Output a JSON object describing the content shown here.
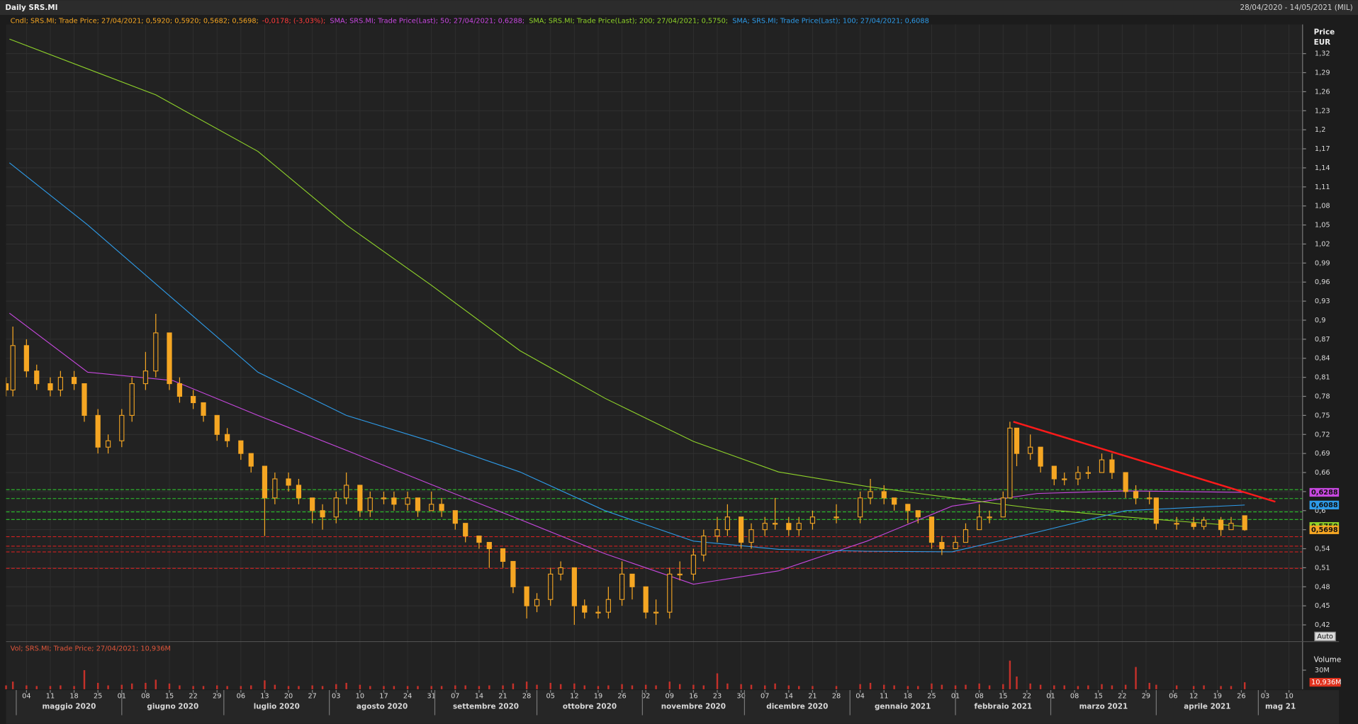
{
  "header": {
    "title": "Daily SRS.MI",
    "range": "28/04/2020 - 14/05/2021 (MIL)"
  },
  "chart_data": {
    "type": "candlestick",
    "candle_legend": [
      {
        "text": "Cndl; SRS.MI; Trade Price; 27/04/2021; 0,5920; 0,5920; 0,5682; 0,5698;",
        "color": "#f5a623"
      },
      {
        "text": "-0,0178; (-3,03%);",
        "color": "#ff3b3b"
      }
    ],
    "color": "#f5a623",
    "x": [
      "2020-04-28",
      "2020-04-30",
      "2020-05-04",
      "2020-05-07",
      "2020-05-11",
      "2020-05-14",
      "2020-05-18",
      "2020-05-21",
      "2020-05-25",
      "2020-05-28",
      "2020-06-01",
      "2020-06-04",
      "2020-06-08",
      "2020-06-11",
      "2020-06-15",
      "2020-06-18",
      "2020-06-22",
      "2020-06-25",
      "2020-06-29",
      "2020-07-02",
      "2020-07-06",
      "2020-07-09",
      "2020-07-13",
      "2020-07-16",
      "2020-07-20",
      "2020-07-23",
      "2020-07-27",
      "2020-07-30",
      "2020-08-03",
      "2020-08-06",
      "2020-08-10",
      "2020-08-13",
      "2020-08-17",
      "2020-08-20",
      "2020-08-24",
      "2020-08-27",
      "2020-08-31",
      "2020-09-03",
      "2020-09-07",
      "2020-09-10",
      "2020-09-14",
      "2020-09-17",
      "2020-09-21",
      "2020-09-24",
      "2020-09-28",
      "2020-10-01",
      "2020-10-05",
      "2020-10-08",
      "2020-10-12",
      "2020-10-15",
      "2020-10-19",
      "2020-10-22",
      "2020-10-26",
      "2020-10-29",
      "2020-11-02",
      "2020-11-05",
      "2020-11-09",
      "2020-11-12",
      "2020-11-16",
      "2020-11-19",
      "2020-11-23",
      "2020-11-26",
      "2020-11-30",
      "2020-12-03",
      "2020-12-07",
      "2020-12-10",
      "2020-12-14",
      "2020-12-17",
      "2020-12-21",
      "2020-12-28",
      "2021-01-04",
      "2021-01-07",
      "2021-01-11",
      "2021-01-14",
      "2021-01-18",
      "2021-01-21",
      "2021-01-25",
      "2021-01-28",
      "2021-02-01",
      "2021-02-04",
      "2021-02-08",
      "2021-02-11",
      "2021-02-15",
      "2021-02-17",
      "2021-02-19",
      "2021-02-23",
      "2021-02-26",
      "2021-03-02",
      "2021-03-05",
      "2021-03-09",
      "2021-03-12",
      "2021-03-16",
      "2021-03-19",
      "2021-03-23",
      "2021-03-26",
      "2021-03-30",
      "2021-04-01",
      "2021-04-07",
      "2021-04-12",
      "2021-04-15",
      "2021-04-20",
      "2021-04-23",
      "2021-04-27"
    ],
    "open": [
      0.8,
      0.79,
      0.86,
      0.82,
      0.8,
      0.79,
      0.81,
      0.8,
      0.75,
      0.7,
      0.71,
      0.75,
      0.8,
      0.82,
      0.88,
      0.8,
      0.78,
      0.77,
      0.75,
      0.72,
      0.71,
      0.69,
      0.67,
      0.62,
      0.65,
      0.64,
      0.62,
      0.6,
      0.59,
      0.62,
      0.64,
      0.6,
      0.62,
      0.62,
      0.61,
      0.62,
      0.6,
      0.61,
      0.6,
      0.58,
      0.56,
      0.55,
      0.54,
      0.52,
      0.48,
      0.45,
      0.46,
      0.5,
      0.51,
      0.45,
      0.44,
      0.44,
      0.46,
      0.5,
      0.48,
      0.44,
      0.44,
      0.5,
      0.5,
      0.53,
      0.56,
      0.57,
      0.59,
      0.55,
      0.57,
      0.58,
      0.58,
      0.57,
      0.58,
      0.59,
      0.59,
      0.62,
      0.63,
      0.62,
      0.61,
      0.6,
      0.59,
      0.55,
      0.54,
      0.55,
      0.57,
      0.59,
      0.59,
      0.62,
      0.73,
      0.69,
      0.7,
      0.67,
      0.65,
      0.65,
      0.66,
      0.66,
      0.68,
      0.66,
      0.63,
      0.62,
      0.62,
      0.58,
      0.58,
      0.575,
      0.585,
      0.57,
      0.592
    ],
    "high": [
      0.81,
      0.89,
      0.87,
      0.83,
      0.81,
      0.82,
      0.82,
      0.8,
      0.76,
      0.72,
      0.76,
      0.81,
      0.85,
      0.91,
      0.88,
      0.81,
      0.79,
      0.77,
      0.75,
      0.73,
      0.71,
      0.69,
      0.67,
      0.66,
      0.66,
      0.65,
      0.62,
      0.61,
      0.63,
      0.66,
      0.64,
      0.63,
      0.63,
      0.63,
      0.63,
      0.62,
      0.63,
      0.62,
      0.6,
      0.58,
      0.56,
      0.55,
      0.54,
      0.52,
      0.48,
      0.47,
      0.51,
      0.52,
      0.51,
      0.46,
      0.45,
      0.48,
      0.52,
      0.5,
      0.48,
      0.46,
      0.51,
      0.52,
      0.54,
      0.57,
      0.59,
      0.61,
      0.59,
      0.58,
      0.59,
      0.62,
      0.59,
      0.59,
      0.6,
      0.61,
      0.63,
      0.65,
      0.64,
      0.62,
      0.61,
      0.6,
      0.59,
      0.56,
      0.56,
      0.58,
      0.61,
      0.6,
      0.63,
      0.74,
      0.73,
      0.72,
      0.7,
      0.67,
      0.66,
      0.67,
      0.67,
      0.69,
      0.69,
      0.66,
      0.64,
      0.63,
      0.62,
      0.59,
      0.59,
      0.59,
      0.59,
      0.59,
      0.592
    ],
    "low": [
      0.78,
      0.78,
      0.81,
      0.79,
      0.78,
      0.78,
      0.79,
      0.74,
      0.69,
      0.69,
      0.7,
      0.74,
      0.79,
      0.81,
      0.79,
      0.77,
      0.76,
      0.74,
      0.71,
      0.7,
      0.68,
      0.66,
      0.56,
      0.61,
      0.63,
      0.61,
      0.58,
      0.57,
      0.58,
      0.61,
      0.59,
      0.59,
      0.61,
      0.6,
      0.6,
      0.59,
      0.6,
      0.59,
      0.57,
      0.55,
      0.54,
      0.51,
      0.51,
      0.47,
      0.43,
      0.44,
      0.45,
      0.49,
      0.42,
      0.43,
      0.43,
      0.43,
      0.45,
      0.46,
      0.43,
      0.42,
      0.43,
      0.49,
      0.49,
      0.52,
      0.55,
      0.56,
      0.54,
      0.54,
      0.56,
      0.57,
      0.56,
      0.56,
      0.57,
      0.58,
      0.58,
      0.61,
      0.61,
      0.6,
      0.58,
      0.58,
      0.54,
      0.53,
      0.54,
      0.55,
      0.57,
      0.58,
      0.59,
      0.62,
      0.67,
      0.68,
      0.66,
      0.64,
      0.64,
      0.64,
      0.65,
      0.66,
      0.65,
      0.62,
      0.61,
      0.61,
      0.57,
      0.57,
      0.57,
      0.57,
      0.56,
      0.57,
      0.5682
    ],
    "close": [
      0.79,
      0.86,
      0.82,
      0.8,
      0.79,
      0.81,
      0.8,
      0.75,
      0.7,
      0.71,
      0.75,
      0.8,
      0.82,
      0.88,
      0.8,
      0.78,
      0.77,
      0.75,
      0.72,
      0.71,
      0.69,
      0.67,
      0.62,
      0.65,
      0.64,
      0.62,
      0.6,
      0.59,
      0.62,
      0.64,
      0.6,
      0.62,
      0.62,
      0.61,
      0.62,
      0.6,
      0.61,
      0.6,
      0.58,
      0.56,
      0.55,
      0.54,
      0.52,
      0.48,
      0.45,
      0.46,
      0.5,
      0.51,
      0.45,
      0.44,
      0.44,
      0.46,
      0.5,
      0.48,
      0.44,
      0.44,
      0.5,
      0.5,
      0.53,
      0.56,
      0.57,
      0.59,
      0.55,
      0.57,
      0.58,
      0.58,
      0.57,
      0.58,
      0.59,
      0.59,
      0.62,
      0.63,
      0.62,
      0.61,
      0.6,
      0.59,
      0.55,
      0.54,
      0.55,
      0.57,
      0.59,
      0.59,
      0.62,
      0.73,
      0.69,
      0.7,
      0.67,
      0.65,
      0.65,
      0.66,
      0.66,
      0.68,
      0.66,
      0.63,
      0.62,
      0.62,
      0.58,
      0.58,
      0.575,
      0.585,
      0.57,
      0.58,
      0.5698
    ],
    "series": [
      {
        "name": "SMA; SRS.MI; Trade Price(Last); 50; 27/04/2021; 0,6288;",
        "color": "#c848e0",
        "x": [
          "2020-04-29",
          "2020-05-22",
          "2020-06-16",
          "2020-07-11",
          "2020-08-06",
          "2020-08-31",
          "2020-09-26",
          "2020-10-21",
          "2020-11-16",
          "2020-12-11",
          "2021-01-06",
          "2021-01-31",
          "2021-02-25",
          "2021-03-23",
          "2021-04-27"
        ],
        "values": [
          0.911,
          0.818,
          0.805,
          0.75,
          0.695,
          0.641,
          0.586,
          0.532,
          0.484,
          0.505,
          0.552,
          0.607,
          0.627,
          0.631,
          0.6288
        ]
      },
      {
        "name": "SMA; SRS.MI; Trade Price(Last); 200; 27/04/2021; 0,5750;",
        "color": "#8fd32a",
        "x": [
          "2020-04-29",
          "2020-06-11",
          "2020-07-11",
          "2020-08-06",
          "2020-08-31",
          "2020-09-26",
          "2020-10-21",
          "2020-11-16",
          "2020-12-11",
          "2021-01-06",
          "2021-01-31",
          "2021-02-25",
          "2021-03-23",
          "2021-04-27"
        ],
        "values": [
          1.343,
          1.255,
          1.166,
          1.05,
          0.955,
          0.852,
          0.777,
          0.709,
          0.661,
          0.638,
          0.62,
          0.603,
          0.59,
          0.575
        ]
      },
      {
        "name": "SMA; SRS.MI; Trade Price(Last); 100; 27/04/2021; 0,6088",
        "color": "#2e9be8",
        "x": [
          "2020-04-29",
          "2020-05-22",
          "2020-06-16",
          "2020-07-11",
          "2020-08-06",
          "2020-08-31",
          "2020-09-26",
          "2020-10-21",
          "2020-11-16",
          "2020-12-11",
          "2021-01-06",
          "2021-01-31",
          "2021-02-25",
          "2021-03-23",
          "2021-04-27"
        ],
        "values": [
          1.148,
          1.05,
          0.934,
          0.818,
          0.75,
          0.709,
          0.661,
          0.6,
          0.552,
          0.539,
          0.536,
          0.535,
          0.566,
          0.6,
          0.6088
        ]
      }
    ],
    "xlim": [
      "2020-04-28",
      "2021-05-14"
    ],
    "xticks": [
      {
        "value": "2020-05-04",
        "label": "04"
      },
      {
        "value": "2020-05-11",
        "label": "11"
      },
      {
        "value": "2020-05-18",
        "label": "18"
      },
      {
        "value": "2020-05-25",
        "label": "25"
      },
      {
        "value": "2020-06-01",
        "label": "01"
      },
      {
        "value": "2020-06-08",
        "label": "08"
      },
      {
        "value": "2020-06-15",
        "label": "15"
      },
      {
        "value": "2020-06-22",
        "label": "22"
      },
      {
        "value": "2020-06-29",
        "label": "29"
      },
      {
        "value": "2020-07-06",
        "label": "06"
      },
      {
        "value": "2020-07-13",
        "label": "13"
      },
      {
        "value": "2020-07-20",
        "label": "20"
      },
      {
        "value": "2020-07-27",
        "label": "27"
      },
      {
        "value": "2020-08-03",
        "label": "03"
      },
      {
        "value": "2020-08-10",
        "label": "10"
      },
      {
        "value": "2020-08-17",
        "label": "17"
      },
      {
        "value": "2020-08-24",
        "label": "24"
      },
      {
        "value": "2020-08-31",
        "label": "31"
      },
      {
        "value": "2020-09-07",
        "label": "07"
      },
      {
        "value": "2020-09-14",
        "label": "14"
      },
      {
        "value": "2020-09-21",
        "label": "21"
      },
      {
        "value": "2020-09-28",
        "label": "28"
      },
      {
        "value": "2020-10-05",
        "label": "05"
      },
      {
        "value": "2020-10-12",
        "label": "12"
      },
      {
        "value": "2020-10-19",
        "label": "19"
      },
      {
        "value": "2020-10-26",
        "label": "26"
      },
      {
        "value": "2020-11-02",
        "label": "02"
      },
      {
        "value": "2020-11-09",
        "label": "09"
      },
      {
        "value": "2020-11-16",
        "label": "16"
      },
      {
        "value": "2020-11-23",
        "label": "23"
      },
      {
        "value": "2020-11-30",
        "label": "30"
      },
      {
        "value": "2020-12-07",
        "label": "07"
      },
      {
        "value": "2020-12-14",
        "label": "14"
      },
      {
        "value": "2020-12-21",
        "label": "21"
      },
      {
        "value": "2020-12-28",
        "label": "28"
      },
      {
        "value": "2021-01-04",
        "label": "04"
      },
      {
        "value": "2021-01-11",
        "label": "11"
      },
      {
        "value": "2021-01-18",
        "label": "18"
      },
      {
        "value": "2021-01-25",
        "label": "25"
      },
      {
        "value": "2021-02-01",
        "label": "01"
      },
      {
        "value": "2021-02-08",
        "label": "08"
      },
      {
        "value": "2021-02-15",
        "label": "15"
      },
      {
        "value": "2021-02-22",
        "label": "22"
      },
      {
        "value": "2021-03-01",
        "label": "01"
      },
      {
        "value": "2021-03-08",
        "label": "08"
      },
      {
        "value": "2021-03-15",
        "label": "15"
      },
      {
        "value": "2021-03-22",
        "label": "22"
      },
      {
        "value": "2021-03-29",
        "label": "29"
      },
      {
        "value": "2021-04-06",
        "label": "06"
      },
      {
        "value": "2021-04-12",
        "label": "12"
      },
      {
        "value": "2021-04-19",
        "label": "19"
      },
      {
        "value": "2021-04-26",
        "label": "26"
      },
      {
        "value": "2021-05-03",
        "label": "03"
      },
      {
        "value": "2021-05-10",
        "label": "10"
      }
    ],
    "months": [
      {
        "value": "2020-05",
        "label": "maggio 2020"
      },
      {
        "value": "2020-06",
        "label": "giugno 2020"
      },
      {
        "value": "2020-07",
        "label": "luglio 2020"
      },
      {
        "value": "2020-08",
        "label": "agosto 2020"
      },
      {
        "value": "2020-09",
        "label": "settembre 2020"
      },
      {
        "value": "2020-10",
        "label": "ottobre 2020"
      },
      {
        "value": "2020-11",
        "label": "novembre 2020"
      },
      {
        "value": "2020-12",
        "label": "dicembre 2020"
      },
      {
        "value": "2021-01",
        "label": "gennaio 2021"
      },
      {
        "value": "2021-02",
        "label": "febbraio 2021"
      },
      {
        "value": "2021-03",
        "label": "marzo 2021"
      },
      {
        "value": "2021-04",
        "label": "aprile 2021"
      },
      {
        "value": "2021-05",
        "label": "mag 21"
      }
    ],
    "ylim": [
      0.395,
      1.366
    ],
    "yticks": [
      {
        "value": 0.42,
        "label": "0,42"
      },
      {
        "value": 0.45,
        "label": "0,45"
      },
      {
        "value": 0.48,
        "label": "0,48"
      },
      {
        "value": 0.51,
        "label": "0,51"
      },
      {
        "value": 0.54,
        "label": "0,54"
      },
      {
        "value": 0.57,
        "label": "0,57"
      },
      {
        "value": 0.6,
        "label": "0,6"
      },
      {
        "value": 0.63,
        "label": "0,63"
      },
      {
        "value": 0.66,
        "label": "0,66"
      },
      {
        "value": 0.69,
        "label": "0,69"
      },
      {
        "value": 0.72,
        "label": "0,72"
      },
      {
        "value": 0.75,
        "label": "0,75"
      },
      {
        "value": 0.78,
        "label": "0,78"
      },
      {
        "value": 0.81,
        "label": "0,81"
      },
      {
        "value": 0.84,
        "label": "0,84"
      },
      {
        "value": 0.87,
        "label": "0,87"
      },
      {
        "value": 0.9,
        "label": "0,9"
      },
      {
        "value": 0.93,
        "label": "0,93"
      },
      {
        "value": 0.96,
        "label": "0,96"
      },
      {
        "value": 0.99,
        "label": "0,99"
      },
      {
        "value": 1.02,
        "label": "1,02"
      },
      {
        "value": 1.05,
        "label": "1,05"
      },
      {
        "value": 1.08,
        "label": "1,08"
      },
      {
        "value": 1.11,
        "label": "1,11"
      },
      {
        "value": 1.14,
        "label": "1,14"
      },
      {
        "value": 1.17,
        "label": "1,17"
      },
      {
        "value": 1.2,
        "label": "1,2"
      },
      {
        "value": 1.23,
        "label": "1,23"
      },
      {
        "value": 1.26,
        "label": "1,26"
      },
      {
        "value": 1.29,
        "label": "1,29"
      },
      {
        "value": 1.32,
        "label": "1,32"
      }
    ],
    "y_axis_title": "Price",
    "y_axis_unit": "EUR",
    "grid": true,
    "support_lines": [
      {
        "value": 0.633,
        "color": "#2ec42e"
      },
      {
        "value": 0.619,
        "color": "#2ec42e"
      },
      {
        "value": 0.598,
        "color": "#2ec42e"
      },
      {
        "value": 0.586,
        "color": "#2ec42e"
      },
      {
        "value": 0.559,
        "color": "#d02020"
      },
      {
        "value": 0.544,
        "color": "#d02020"
      },
      {
        "value": 0.535,
        "color": "#d02020"
      },
      {
        "value": 0.509,
        "color": "#d02020"
      }
    ],
    "trendline": {
      "x": [
        "2021-02-18",
        "2021-05-06"
      ],
      "y": [
        0.74,
        0.614
      ],
      "color": "#ff1a1a"
    },
    "price_labels": [
      {
        "value": 0.6288,
        "label": "0,6288",
        "color": "#c848e0"
      },
      {
        "value": 0.6088,
        "label": "0,6088",
        "color": "#2e9be8"
      },
      {
        "value": 0.575,
        "label": "0,5750",
        "color": "#8fd32a"
      },
      {
        "value": 0.5698,
        "label": "0,5698",
        "color": "#f5a623"
      }
    ],
    "volume": {
      "legend": "Vol; SRS.MI; Trade Price; 27/04/2021; 10,936M",
      "title": "Volume",
      "color": "#c4312a",
      "values": [
        6,
        12,
        6,
        5,
        5,
        6,
        5,
        30,
        10,
        6,
        7,
        9,
        10,
        15,
        9,
        6,
        5,
        5,
        6,
        5,
        5,
        6,
        14,
        7,
        5,
        5,
        6,
        5,
        8,
        10,
        7,
        5,
        5,
        5,
        5,
        5,
        5,
        5,
        6,
        6,
        5,
        6,
        6,
        9,
        12,
        7,
        10,
        8,
        9,
        6,
        5,
        6,
        8,
        6,
        7,
        6,
        12,
        8,
        7,
        6,
        25,
        9,
        8,
        7,
        6,
        9,
        6,
        5,
        5,
        5,
        8,
        10,
        7,
        6,
        5,
        5,
        9,
        7,
        6,
        7,
        9,
        6,
        8,
        45,
        20,
        9,
        7,
        6,
        6,
        5,
        6,
        8,
        6,
        7,
        35,
        10,
        7,
        6,
        5,
        6,
        5,
        5,
        10.936
      ],
      "ylim": [
        0,
        60
      ],
      "yticks": [
        {
          "value": 30,
          "label": "30M"
        }
      ],
      "last_label": {
        "value": 10.936,
        "label": "10,936M"
      }
    },
    "auto_button": "Auto"
  }
}
